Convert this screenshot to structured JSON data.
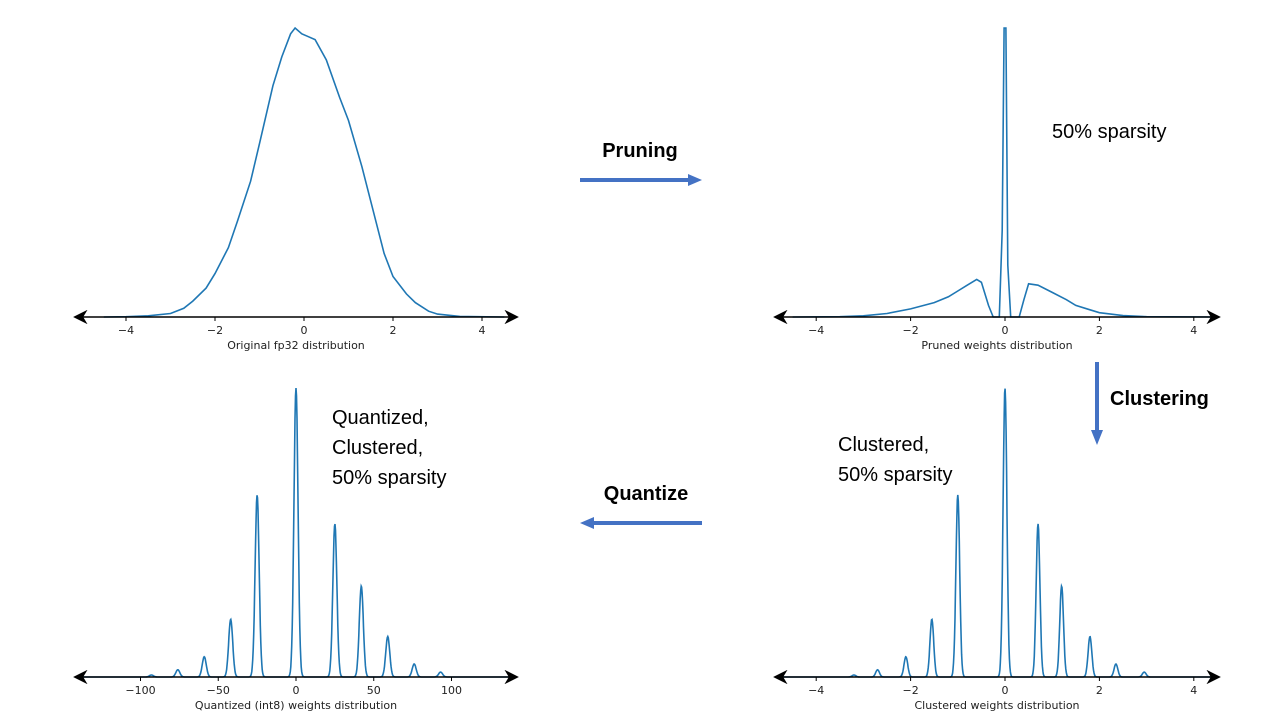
{
  "colors": {
    "curve": "#1f77b4",
    "arrow": "#4472c4",
    "axis": "#000000"
  },
  "steps": {
    "pruning": "Pruning",
    "clustering": "Clustering",
    "quantize": "Quantize"
  },
  "chart_data": [
    {
      "id": "original",
      "type": "line",
      "xlabel": "Original fp32 distribution",
      "xticks": [
        "−4",
        "−2",
        "0",
        "2",
        "4"
      ],
      "xtick_values": [
        -4,
        -2,
        0,
        2,
        4
      ],
      "xlim": [
        -5,
        4.9
      ],
      "annotation": [],
      "points": [
        [
          -4.5,
          0
        ],
        [
          -4,
          0.001
        ],
        [
          -3.5,
          0.004
        ],
        [
          -3,
          0.012
        ],
        [
          -2.7,
          0.03
        ],
        [
          -2.5,
          0.055
        ],
        [
          -2.2,
          0.1
        ],
        [
          -2,
          0.15
        ],
        [
          -1.7,
          0.24
        ],
        [
          -1.5,
          0.33
        ],
        [
          -1.2,
          0.47
        ],
        [
          -1,
          0.6
        ],
        [
          -0.7,
          0.8
        ],
        [
          -0.5,
          0.9
        ],
        [
          -0.3,
          0.98
        ],
        [
          -0.2,
          1.0
        ],
        [
          -0.05,
          0.98
        ],
        [
          0.1,
          0.97
        ],
        [
          0.25,
          0.96
        ],
        [
          0.5,
          0.89
        ],
        [
          0.8,
          0.76
        ],
        [
          1,
          0.68
        ],
        [
          1.3,
          0.52
        ],
        [
          1.5,
          0.4
        ],
        [
          1.8,
          0.22
        ],
        [
          2,
          0.14
        ],
        [
          2.3,
          0.08
        ],
        [
          2.5,
          0.05
        ],
        [
          2.8,
          0.02
        ],
        [
          3,
          0.01
        ],
        [
          3.5,
          0.002
        ],
        [
          4.5,
          0
        ]
      ]
    },
    {
      "id": "pruned",
      "type": "line",
      "xlabel": "Pruned weights distribution",
      "xticks": [
        "−4",
        "−2",
        "0",
        "2",
        "4"
      ],
      "xtick_values": [
        -4,
        -2,
        0,
        2,
        4
      ],
      "xlim": [
        -4.9,
        4.8
      ],
      "annotation": [
        "50% sparsity"
      ],
      "points": [
        [
          -4.5,
          0
        ],
        [
          -3.5,
          0.001
        ],
        [
          -3,
          0.004
        ],
        [
          -2.5,
          0.012
        ],
        [
          -2,
          0.028
        ],
        [
          -1.5,
          0.05
        ],
        [
          -1.2,
          0.07
        ],
        [
          -1,
          0.09
        ],
        [
          -0.8,
          0.11
        ],
        [
          -0.6,
          0.13
        ],
        [
          -0.5,
          0.12
        ],
        [
          -0.35,
          0.04
        ],
        [
          -0.25,
          0
        ],
        [
          -0.12,
          0
        ],
        [
          -0.06,
          0.3
        ],
        [
          -0.02,
          1.0
        ],
        [
          0.02,
          1.0
        ],
        [
          0.06,
          0.18
        ],
        [
          0.12,
          0
        ],
        [
          0.3,
          0
        ],
        [
          0.4,
          0.06
        ],
        [
          0.5,
          0.115
        ],
        [
          0.7,
          0.11
        ],
        [
          1,
          0.085
        ],
        [
          1.3,
          0.06
        ],
        [
          1.5,
          0.04
        ],
        [
          1.8,
          0.025
        ],
        [
          2,
          0.015
        ],
        [
          2.5,
          0.005
        ],
        [
          3,
          0.001
        ],
        [
          4.5,
          0
        ]
      ]
    },
    {
      "id": "quantized",
      "type": "line",
      "xlabel": "Quantized (int8) weights distribution",
      "xticks": [
        "−100",
        "−50",
        "0",
        "50",
        "100"
      ],
      "xtick_values": [
        -100,
        -50,
        0,
        50,
        100
      ],
      "xlim": [
        -145,
        145
      ],
      "annotation": [
        "Quantized,",
        "Clustered,",
        "50% sparsity"
      ],
      "peaks": [
        [
          -93,
          0.007
        ],
        [
          -76,
          0.025
        ],
        [
          -59,
          0.07
        ],
        [
          -42,
          0.2
        ],
        [
          -25,
          0.63
        ],
        [
          0,
          1.0
        ],
        [
          25,
          0.53
        ],
        [
          42,
          0.315
        ],
        [
          59,
          0.14
        ],
        [
          76,
          0.045
        ],
        [
          93,
          0.017
        ]
      ],
      "peak_width": 1.3
    },
    {
      "id": "clustered",
      "type": "line",
      "xlabel": "Clustered weights distribution",
      "xticks": [
        "−4",
        "−2",
        "0",
        "2",
        "4"
      ],
      "xtick_values": [
        -4,
        -2,
        0,
        2,
        4
      ],
      "xlim": [
        -4.9,
        4.8
      ],
      "annotation": [
        "Clustered,",
        "50% sparsity"
      ],
      "peaks": [
        [
          -3.2,
          0.007
        ],
        [
          -2.7,
          0.025
        ],
        [
          -2.1,
          0.07
        ],
        [
          -1.55,
          0.2
        ],
        [
          -1.0,
          0.63
        ],
        [
          0,
          1.0
        ],
        [
          0.7,
          0.53
        ],
        [
          1.2,
          0.315
        ],
        [
          1.8,
          0.14
        ],
        [
          2.35,
          0.045
        ],
        [
          2.95,
          0.017
        ]
      ],
      "peak_width": 0.04
    }
  ]
}
